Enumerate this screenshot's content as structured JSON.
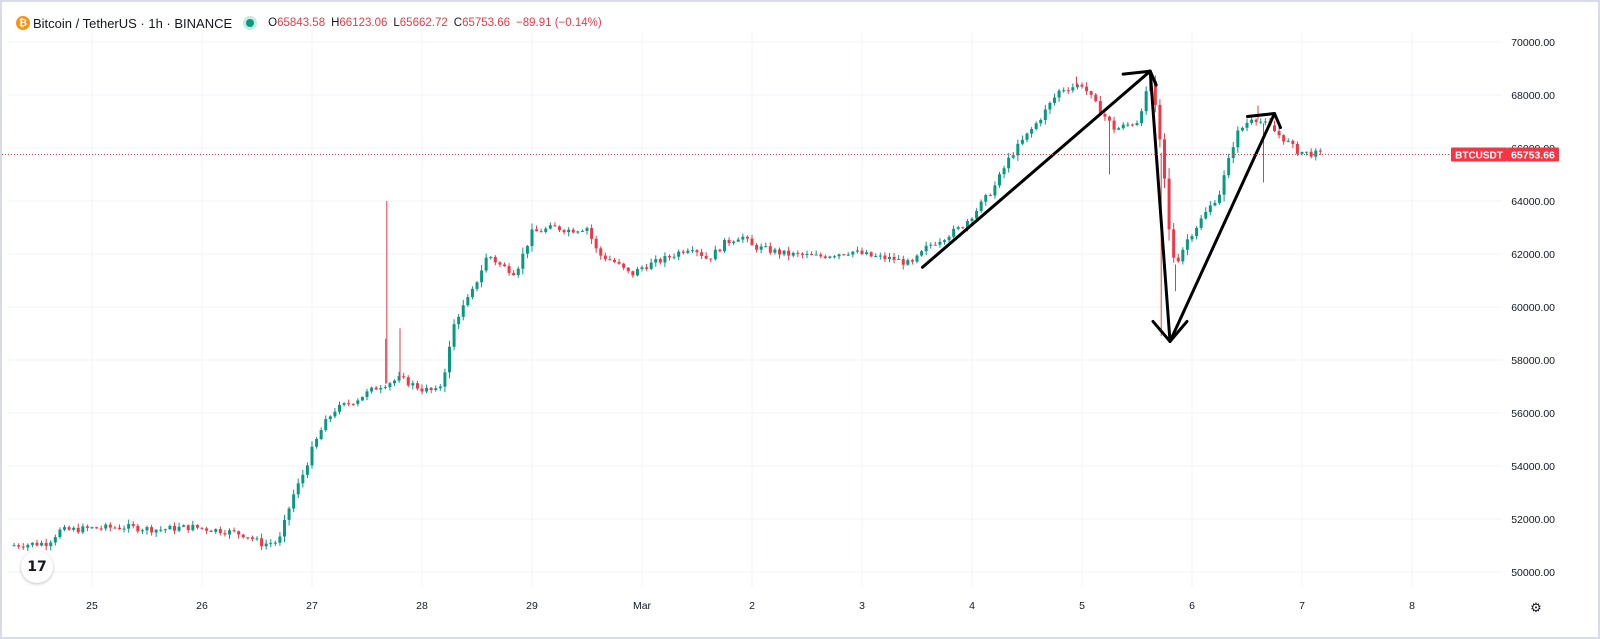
{
  "header": {
    "logo_glyph": "₿",
    "symbol": "Bitcoin / TetherUS · 1h · BINANCE",
    "ohlc": [
      {
        "k": "O",
        "v": "65843.58"
      },
      {
        "k": "H",
        "v": "66123.06"
      },
      {
        "k": "L",
        "v": "65662.72"
      },
      {
        "k": "C",
        "v": "65753.66"
      }
    ],
    "change": "−89.91 (−0.14%)"
  },
  "price_tag": {
    "ticker": "BTCUSDT",
    "price": "65753.66"
  },
  "tv_logo": "17",
  "settings_icon": "⚙",
  "colors": {
    "up": "#089981",
    "down": "#f23645",
    "grid": "#f0f3fa",
    "annotation": "#000000"
  },
  "chart_data": {
    "type": "candlestick",
    "interval": "1h",
    "y_axis": {
      "min": 49500,
      "max": 70500,
      "ticks": [
        "50000.00",
        "52000.00",
        "54000.00",
        "56000.00",
        "58000.00",
        "60000.00",
        "62000.00",
        "64000.00",
        "66000.00",
        "68000.00",
        "70000.00"
      ]
    },
    "x_axis": {
      "labels": [
        "25",
        "26",
        "27",
        "28",
        "29",
        "Mar",
        "2",
        "3",
        "4",
        "5",
        "6",
        "7",
        "8"
      ],
      "start": -0.75,
      "end": 13.55
    },
    "close_path": [
      [
        -0.75,
        51000
      ],
      [
        -0.4,
        51100
      ],
      [
        -0.3,
        51550
      ],
      [
        0,
        51650
      ],
      [
        0.3,
        51700
      ],
      [
        0.6,
        51600
      ],
      [
        0.9,
        51700
      ],
      [
        1.2,
        51550
      ],
      [
        1.4,
        51400
      ],
      [
        1.55,
        51050
      ],
      [
        1.7,
        51150
      ],
      [
        1.82,
        52800
      ],
      [
        1.9,
        53500
      ],
      [
        2.0,
        54600
      ],
      [
        2.1,
        55500
      ],
      [
        2.2,
        56100
      ],
      [
        2.4,
        56500
      ],
      [
        2.6,
        57000
      ],
      [
        2.8,
        57300
      ],
      [
        3.0,
        56900
      ],
      [
        3.15,
        56800
      ],
      [
        3.22,
        57800
      ],
      [
        3.3,
        59500
      ],
      [
        3.45,
        60500
      ],
      [
        3.6,
        62000
      ],
      [
        3.7,
        61600
      ],
      [
        3.85,
        61300
      ],
      [
        4.0,
        62800
      ],
      [
        4.2,
        63000
      ],
      [
        4.35,
        62900
      ],
      [
        4.5,
        63000
      ],
      [
        4.6,
        62000
      ],
      [
        4.75,
        61700
      ],
      [
        4.9,
        61200
      ],
      [
        5.0,
        61500
      ],
      [
        5.2,
        61800
      ],
      [
        5.45,
        62300
      ],
      [
        5.6,
        61800
      ],
      [
        5.75,
        62400
      ],
      [
        5.9,
        62700
      ],
      [
        6.0,
        62300
      ],
      [
        6.3,
        62000
      ],
      [
        6.6,
        61900
      ],
      [
        6.9,
        62100
      ],
      [
        7.1,
        61900
      ],
      [
        7.3,
        61800
      ],
      [
        7.45,
        61600
      ],
      [
        7.6,
        62300
      ],
      [
        7.9,
        63000
      ],
      [
        8.05,
        63700
      ],
      [
        8.2,
        64500
      ],
      [
        8.35,
        65700
      ],
      [
        8.6,
        67000
      ],
      [
        8.8,
        68200
      ],
      [
        9.0,
        68400
      ],
      [
        9.15,
        67500
      ],
      [
        9.3,
        66700
      ],
      [
        9.5,
        67000
      ],
      [
        9.63,
        68600
      ],
      [
        9.7,
        66500
      ],
      [
        9.75,
        64800
      ],
      [
        9.8,
        62500
      ],
      [
        9.85,
        61600
      ],
      [
        9.95,
        62500
      ],
      [
        10.1,
        63400
      ],
      [
        10.25,
        64300
      ],
      [
        10.4,
        66500
      ],
      [
        10.55,
        67200
      ],
      [
        10.7,
        66800
      ],
      [
        10.85,
        66300
      ],
      [
        10.95,
        65900
      ],
      [
        11.05,
        65800
      ],
      [
        11.2,
        65750
      ]
    ],
    "wick_highs": [
      [
        2.68,
        64000
      ],
      [
        8.95,
        68700
      ],
      [
        9.62,
        68900
      ],
      [
        10.6,
        67600
      ]
    ],
    "wick_lows": [
      [
        2.67,
        58800
      ],
      [
        2.8,
        59200
      ],
      [
        9.25,
        65000
      ],
      [
        9.72,
        58900
      ],
      [
        9.85,
        60600
      ],
      [
        10.65,
        64700
      ]
    ],
    "annotations": [
      {
        "type": "line",
        "from": [
          7.55,
          61500
        ],
        "to": [
          9.62,
          68900
        ]
      },
      {
        "type": "line",
        "from": [
          9.62,
          68900
        ],
        "to": [
          9.8,
          58700
        ]
      },
      {
        "type": "line",
        "from": [
          9.8,
          58700
        ],
        "to": [
          10.75,
          67300
        ]
      },
      {
        "type": "arrowhead",
        "at": [
          9.8,
          58700
        ],
        "direction": "down"
      },
      {
        "type": "arrowhead",
        "at": [
          9.62,
          68900
        ],
        "direction": "up-right"
      },
      {
        "type": "arrowhead",
        "at": [
          10.75,
          67300
        ],
        "direction": "up-right"
      }
    ],
    "last_price": 65753.66
  }
}
